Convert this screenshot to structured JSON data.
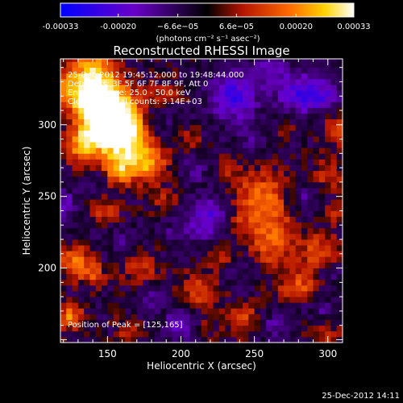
{
  "chart_data": {
    "type": "heatmap",
    "title": "Reconstructed RHESSI Image",
    "xlabel": "Heliocentric X (arcsec)",
    "ylabel": "Heliocentric Y (arcsec)",
    "xlim": [
      118,
      310
    ],
    "ylim": [
      148,
      346
    ],
    "x_ticks": [
      150,
      200,
      250,
      300
    ],
    "y_ticks": [
      200,
      250,
      300
    ],
    "colorbar": {
      "label": "(photons cm⁻² s⁻¹ asec⁻²)",
      "range": [
        -0.00033,
        0.00033
      ],
      "ticks": [
        -0.00033,
        -0.0002,
        -6.6e-05,
        6.6e-05,
        0.0002,
        0.00033
      ],
      "tick_labels": [
        "-0.00033",
        "-0.00020",
        "−6.6e−05",
        "6.6e−05",
        "0.00020",
        "0.00033"
      ],
      "colors": [
        "#0000ff",
        "#6a00c8",
        "#000000",
        "#b41400",
        "#ff6a00",
        "#ffd200",
        "#ffffff"
      ]
    },
    "peak_position": [
      125,
      165
    ],
    "total_counts": "3.14E+03"
  },
  "legend": {
    "line1": "25-Dec-2012 19:45:12.000 to 19:48:44.000",
    "line2": "Detectors: 3F 5F 6F 7F 8F 9F, Att 0",
    "line3": "Energy Range: 25.0 - 50.0 keV",
    "line4": "Clean       Total counts: 3.14E+03",
    "peak": "Position of Peak = [125,165]"
  },
  "footer": "25-Dec-2012 14:11"
}
